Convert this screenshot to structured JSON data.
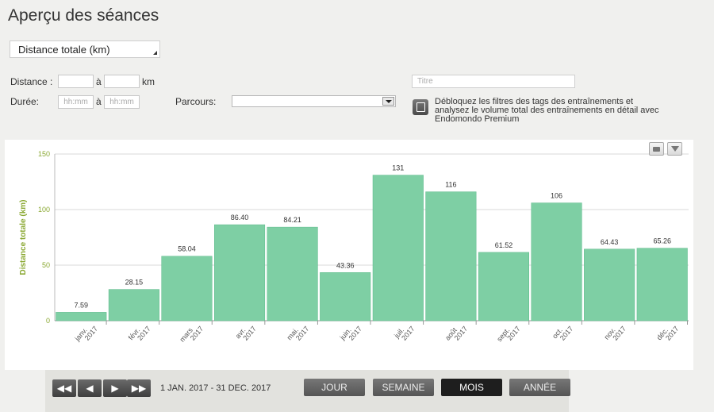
{
  "header": {
    "title": "Aperçu des séances"
  },
  "metric_select": {
    "value": "Distance totale (km)"
  },
  "filters": {
    "distance_label": "Distance :",
    "distance_sep": "à",
    "distance_unit": "km",
    "duree_label": "Durée:",
    "duree_from_placeholder": "hh:mm",
    "duree_sep": "à",
    "duree_to_placeholder": "hh:mm",
    "parcours_label": "Parcours:",
    "titre_placeholder": "Titre",
    "premium_text": "Débloquez les filtres des tags des entraînements et analysez le volume total des entraînements en détail avec Endomondo Premium"
  },
  "chart_data": {
    "type": "bar",
    "ylabel": "Distance totale (km)",
    "ylim": [
      0,
      150
    ],
    "yticks": [
      0,
      50,
      100,
      150
    ],
    "grid": true,
    "categories": [
      "janv. 2017",
      "févr. 2017",
      "mars 2017",
      "avr. 2017",
      "mai. 2017",
      "juin. 2017",
      "juil. 2017",
      "août 2017",
      "sept. 2017",
      "oct. 2017",
      "nov. 2017",
      "déc. 2017"
    ],
    "values": [
      7.59,
      28.15,
      58.04,
      86.4,
      84.21,
      43.36,
      131,
      116,
      61.52,
      106,
      64.43,
      65.26
    ],
    "value_labels": [
      "7.59",
      "28.15",
      "58.04",
      "86.40",
      "84.21",
      "43.36",
      "131",
      "116",
      "61.52",
      "106",
      "64.43",
      "65.26"
    ],
    "colors": {
      "bar": "#7ecfa4",
      "bar_border": "#5cb98a",
      "axis_label": "#8aa832",
      "tick": "#555555",
      "grid": "#d8d8d8"
    }
  },
  "navigation": {
    "first_icon": "double-left-icon",
    "prev_icon": "left-icon",
    "next_icon": "right-icon",
    "last_icon": "double-right-icon",
    "date_range": "1 JAN. 2017  -  31 DEC. 2017",
    "views": [
      {
        "label": "JOUR",
        "active": false
      },
      {
        "label": "SEMAINE",
        "active": false
      },
      {
        "label": "MOIS",
        "active": true
      },
      {
        "label": "ANNÉE",
        "active": false
      }
    ]
  }
}
